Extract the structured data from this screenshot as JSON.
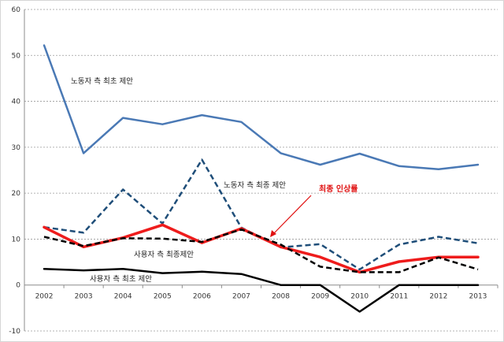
{
  "chart_data": {
    "type": "line",
    "x": [
      "2002",
      "2003",
      "2004",
      "2005",
      "2006",
      "2007",
      "2008",
      "2009",
      "2010",
      "2011",
      "2012",
      "2013"
    ],
    "ylim": [
      -10,
      60
    ],
    "yticks": [
      -10,
      0,
      10,
      20,
      30,
      40,
      50,
      60
    ],
    "grid": true,
    "series": [
      {
        "key": "labor_initial",
        "color": "#4a79b5",
        "dash": "solid",
        "width": 2.5,
        "values": [
          52.2,
          28.7,
          36.4,
          35.0,
          37.0,
          35.5,
          28.7,
          26.2,
          28.6,
          25.9,
          25.2,
          26.2
        ]
      },
      {
        "key": "labor_final",
        "color": "#1f4e79",
        "dash": "dashed",
        "width": 2.5,
        "values": [
          12.6,
          11.4,
          20.8,
          13.4,
          27.3,
          12.5,
          8.2,
          8.9,
          3.4,
          8.8,
          10.5,
          9.1
        ]
      },
      {
        "key": "wage_increase",
        "color": "#ee1c1c",
        "dash": "solid",
        "width": 3.5,
        "values": [
          12.6,
          8.3,
          10.3,
          13.1,
          9.2,
          12.3,
          8.3,
          6.1,
          2.8,
          5.1,
          6.1,
          6.1
        ]
      },
      {
        "key": "employer_final",
        "color": "#000000",
        "dash": "dashed",
        "width": 2.5,
        "values": [
          10.5,
          8.5,
          10.2,
          10.1,
          9.4,
          12.1,
          8.8,
          4.0,
          2.8,
          2.8,
          6.0,
          3.4
        ]
      },
      {
        "key": "employer_initial",
        "color": "#000000",
        "dash": "solid",
        "width": 2.5,
        "values": [
          3.5,
          3.2,
          3.5,
          2.6,
          2.9,
          2.4,
          0,
          0,
          -5.8,
          0,
          0,
          0
        ]
      }
    ],
    "annotations": {
      "labor_initial": "노동자 측 최초 제안",
      "labor_final": "노동자 측 최종 제안",
      "wage_increase": "최종 인상률",
      "employer_final": "사용자 측 최종제안",
      "employer_initial": "사용자 측 최초 제안"
    }
  }
}
